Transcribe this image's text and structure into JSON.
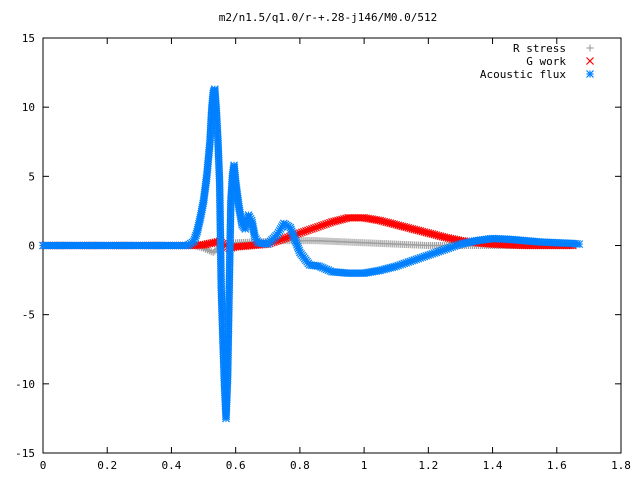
{
  "chart_data": {
    "type": "scatter",
    "title": "m2/n1.5/q1.0/r-+.28-j146/M0.0/512",
    "xlabel": "",
    "ylabel": "",
    "xlim": [
      0,
      1.8
    ],
    "ylim": [
      -15,
      15
    ],
    "x_ticks": [
      0,
      0.2,
      0.4,
      0.6,
      0.8,
      1,
      1.2,
      1.4,
      1.6,
      1.8
    ],
    "x_tick_labels": [
      "0",
      "0.2",
      "0.4",
      "0.6",
      "0.8",
      "1",
      "1.2",
      "1.4",
      "1.6",
      "1.8"
    ],
    "y_ticks": [
      -15,
      -10,
      -5,
      0,
      5,
      10,
      15
    ],
    "y_tick_labels": [
      "-15",
      "-10",
      "-5",
      "0",
      "5",
      "10",
      "15"
    ],
    "grid": false,
    "legend_position": "top-right",
    "series": [
      {
        "name": "R stress",
        "marker": "plus",
        "color": "#a0a0a0",
        "points": [
          [
            0.0,
            0
          ],
          [
            0.1,
            0
          ],
          [
            0.2,
            0
          ],
          [
            0.3,
            0
          ],
          [
            0.4,
            0
          ],
          [
            0.47,
            0
          ],
          [
            0.5,
            -0.2
          ],
          [
            0.53,
            -0.5
          ],
          [
            0.56,
            0.1
          ],
          [
            0.6,
            0.2
          ],
          [
            0.65,
            0.25
          ],
          [
            0.7,
            0.3
          ],
          [
            0.75,
            0.35
          ],
          [
            0.8,
            0.35
          ],
          [
            0.85,
            0.35
          ],
          [
            0.9,
            0.3
          ],
          [
            0.95,
            0.25
          ],
          [
            1.0,
            0.2
          ],
          [
            1.05,
            0.15
          ],
          [
            1.1,
            0.1
          ],
          [
            1.15,
            0.05
          ],
          [
            1.2,
            0.0
          ],
          [
            1.25,
            0.0
          ],
          [
            1.3,
            0.0
          ],
          [
            1.35,
            0.0
          ],
          [
            1.4,
            0.0
          ],
          [
            1.45,
            0.0
          ],
          [
            1.5,
            0.0
          ],
          [
            1.55,
            0.0
          ],
          [
            1.6,
            0.0
          ],
          [
            1.65,
            0.0
          ]
        ]
      },
      {
        "name": "G work",
        "marker": "cross",
        "color": "#ff0000",
        "points": [
          [
            0.0,
            0
          ],
          [
            0.1,
            0
          ],
          [
            0.2,
            0
          ],
          [
            0.3,
            0
          ],
          [
            0.4,
            0
          ],
          [
            0.47,
            0
          ],
          [
            0.5,
            0.05
          ],
          [
            0.53,
            0.2
          ],
          [
            0.55,
            0.3
          ],
          [
            0.58,
            -0.2
          ],
          [
            0.6,
            -0.1
          ],
          [
            0.65,
            0.0
          ],
          [
            0.7,
            0.1
          ],
          [
            0.75,
            0.5
          ],
          [
            0.8,
            0.9
          ],
          [
            0.85,
            1.3
          ],
          [
            0.9,
            1.7
          ],
          [
            0.95,
            2.0
          ],
          [
            1.0,
            2.0
          ],
          [
            1.05,
            1.8
          ],
          [
            1.1,
            1.5
          ],
          [
            1.15,
            1.2
          ],
          [
            1.2,
            0.9
          ],
          [
            1.25,
            0.6
          ],
          [
            1.3,
            0.35
          ],
          [
            1.35,
            0.2
          ],
          [
            1.4,
            0.1
          ],
          [
            1.45,
            0.05
          ],
          [
            1.5,
            0.0
          ],
          [
            1.55,
            0.0
          ],
          [
            1.6,
            0.0
          ],
          [
            1.65,
            0.0
          ]
        ]
      },
      {
        "name": "Acoustic flux",
        "marker": "star",
        "color": "#0080ff",
        "points": [
          [
            0.0,
            0
          ],
          [
            0.05,
            0
          ],
          [
            0.1,
            0
          ],
          [
            0.15,
            0
          ],
          [
            0.2,
            0
          ],
          [
            0.25,
            0
          ],
          [
            0.3,
            0
          ],
          [
            0.35,
            0
          ],
          [
            0.4,
            0
          ],
          [
            0.45,
            0
          ],
          [
            0.47,
            0.3
          ],
          [
            0.48,
            1.0
          ],
          [
            0.49,
            2.0
          ],
          [
            0.5,
            3.2
          ],
          [
            0.51,
            5.0
          ],
          [
            0.52,
            7.5
          ],
          [
            0.525,
            9.7
          ],
          [
            0.53,
            11.0
          ],
          [
            0.535,
            11.3
          ],
          [
            0.54,
            9.7
          ],
          [
            0.545,
            7.5
          ],
          [
            0.55,
            4.6
          ],
          [
            0.555,
            -3.0
          ],
          [
            0.56,
            -6.7
          ],
          [
            0.565,
            -10.0
          ],
          [
            0.57,
            -12.5
          ],
          [
            0.575,
            -9.6
          ],
          [
            0.58,
            -3.0
          ],
          [
            0.585,
            3.2
          ],
          [
            0.59,
            5.0
          ],
          [
            0.595,
            5.8
          ],
          [
            0.6,
            4.6
          ],
          [
            0.61,
            2.8
          ],
          [
            0.62,
            1.5
          ],
          [
            0.63,
            1.2
          ],
          [
            0.64,
            2.2
          ],
          [
            0.65,
            1.8
          ],
          [
            0.66,
            0.6
          ],
          [
            0.67,
            0.2
          ],
          [
            0.7,
            0.1
          ],
          [
            0.73,
            0.8
          ],
          [
            0.75,
            1.6
          ],
          [
            0.77,
            1.3
          ],
          [
            0.8,
            -0.5
          ],
          [
            0.83,
            -1.4
          ],
          [
            0.86,
            -1.5
          ],
          [
            0.9,
            -1.9
          ],
          [
            0.95,
            -2.0
          ],
          [
            1.0,
            -2.0
          ],
          [
            1.05,
            -1.8
          ],
          [
            1.1,
            -1.5
          ],
          [
            1.15,
            -1.1
          ],
          [
            1.2,
            -0.7
          ],
          [
            1.25,
            -0.3
          ],
          [
            1.3,
            0.1
          ],
          [
            1.35,
            0.35
          ],
          [
            1.4,
            0.5
          ],
          [
            1.45,
            0.45
          ],
          [
            1.5,
            0.35
          ],
          [
            1.55,
            0.25
          ],
          [
            1.6,
            0.2
          ],
          [
            1.65,
            0.15
          ],
          [
            1.67,
            0.1
          ]
        ]
      }
    ]
  }
}
